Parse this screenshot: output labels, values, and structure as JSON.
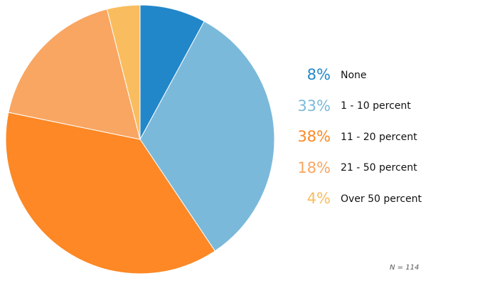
{
  "chart_data": {
    "type": "pie",
    "start_angle_deg": 0,
    "direction": "clockwise",
    "slices": [
      {
        "label": "None",
        "value": 8,
        "value_label": "8%",
        "color": "#2287c9"
      },
      {
        "label": "1 - 10 percent",
        "value": 33,
        "value_label": "33%",
        "color": "#7bb9da"
      },
      {
        "label": "11 - 20 percent",
        "value": 38,
        "value_label": "38%",
        "color": "#fd8825"
      },
      {
        "label": "21 - 50 percent",
        "value": 18,
        "value_label": "18%",
        "color": "#f9a662"
      },
      {
        "label": "Over 50 percent",
        "value": 4,
        "value_label": "4%",
        "color": "#f9bd5f"
      }
    ],
    "legend_position": "right",
    "note": "N = 114"
  }
}
